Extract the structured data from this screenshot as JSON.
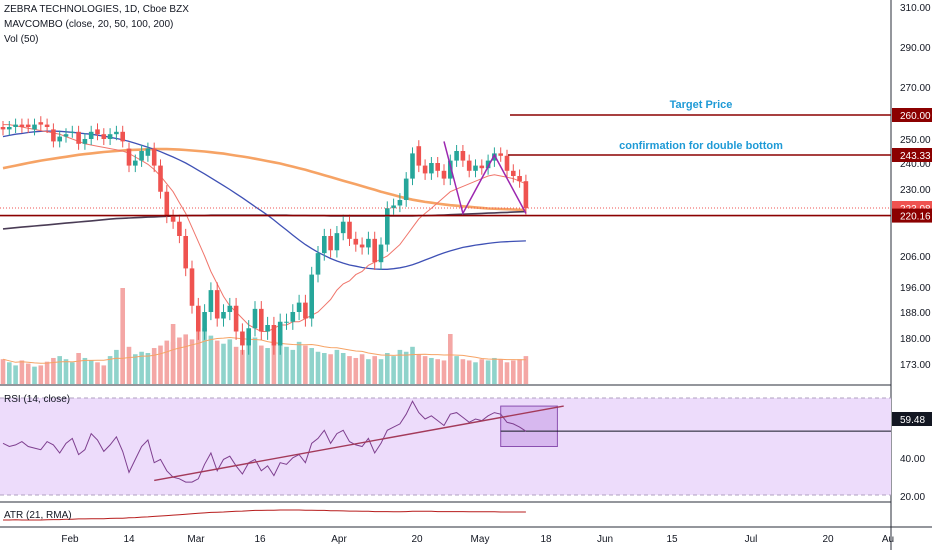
{
  "header": {
    "symbol_line": "ZEBRA TECHNOLOGIES, 1D, Cboe BZX",
    "indicator_line": "MAVCOMBO (close, 20, 50, 100, 200)",
    "volume_line": "Vol (50)"
  },
  "panes": {
    "rsi_label": "RSI (14, close)",
    "atr_label": "ATR (21, RMA)"
  },
  "annotations": {
    "target_label": "Target Price",
    "confirmation_label": "confirmation for double bottom"
  },
  "colors": {
    "up": "#26a69a",
    "down": "#ef5350",
    "ma_fast": "#f0766c",
    "ma_mid": "#3f51b5",
    "ma_slow": "#f6a365",
    "ma_long": "#4a3c55",
    "annotation_line": "#8b0000",
    "annotation_text": "#1e9ad6",
    "rsi_line": "#7e3f8f",
    "rsi_band": "#eddcfb",
    "trendline": "#a33a5a"
  },
  "chart_data": [
    {
      "type": "candlestick",
      "pane": "price",
      "title": "ZEBRA TECHNOLOGIES, 1D, Cboe BZX",
      "price_axis_ticks": [
        310,
        290,
        270,
        250,
        240,
        230,
        220,
        206,
        196,
        188,
        180,
        173
      ],
      "time_axis_ticks": [
        "Feb",
        "14",
        "Mar",
        "16",
        "Apr",
        "20",
        "May",
        "18",
        "Jun",
        "15",
        "Jul",
        "20",
        "Au"
      ],
      "price_labels": [
        {
          "value": 260.0,
          "text": "260.00",
          "kind": "level"
        },
        {
          "value": 243.33,
          "text": "243.33",
          "kind": "level"
        },
        {
          "value": 223.08,
          "text": "223.08",
          "kind": "last"
        },
        {
          "value": 220.16,
          "text": "220.16",
          "kind": "level"
        }
      ],
      "horizontal_levels": [
        {
          "value": 260.0,
          "label": "Target Price"
        },
        {
          "value": 243.33,
          "label": "confirmation for double bottom"
        },
        {
          "value": 220.16,
          "label": ""
        }
      ],
      "double_bottom_pattern": {
        "points": [
          {
            "day": 70,
            "price": 249
          },
          {
            "day": 73,
            "price": 221
          },
          {
            "day": 78,
            "price": 243.33
          },
          {
            "day": 83,
            "price": 221
          }
        ]
      },
      "closes": [
        254,
        255,
        256,
        255,
        255,
        256,
        256,
        255,
        249,
        251,
        252,
        253,
        248,
        250,
        253,
        252,
        250,
        252,
        253,
        249,
        239,
        241,
        245,
        246,
        239,
        229,
        220,
        218,
        213,
        202,
        190,
        182,
        188,
        195,
        186,
        188,
        190,
        182,
        178,
        183,
        189,
        182,
        184,
        178,
        185,
        185,
        188,
        191,
        186,
        200,
        207,
        213,
        208,
        214,
        218,
        212,
        210,
        209,
        212,
        204,
        210,
        223,
        224,
        226,
        234,
        244,
        239,
        236,
        240,
        237,
        234,
        241,
        245,
        241,
        237,
        239,
        238,
        241,
        244,
        243,
        237,
        235,
        233,
        223
      ],
      "opens": [
        255,
        254,
        255,
        256,
        256,
        254,
        257,
        256,
        254,
        249,
        251,
        253,
        253,
        248,
        250,
        254,
        252,
        250,
        252,
        253,
        246,
        239,
        241,
        243,
        246,
        239,
        229,
        220,
        218,
        213,
        202,
        190,
        182,
        188,
        195,
        186,
        188,
        190,
        182,
        178,
        183,
        189,
        182,
        184,
        178,
        185,
        185,
        188,
        191,
        186,
        200,
        207,
        213,
        208,
        214,
        218,
        212,
        210,
        209,
        212,
        204,
        210,
        223,
        224,
        226,
        234,
        247,
        239,
        236,
        240,
        237,
        234,
        241,
        245,
        241,
        237,
        239,
        238,
        241,
        244,
        243,
        237,
        235,
        233
      ],
      "ma20": [
        256,
        256,
        255.5,
        255,
        254.5,
        254,
        253.5,
        253,
        252.5,
        252,
        251,
        250,
        249,
        248,
        247.5,
        247,
        246.5,
        246,
        245.5,
        245,
        244,
        242.5,
        241,
        239.5,
        237.5,
        235,
        232,
        229,
        225,
        221,
        216,
        211,
        206,
        201,
        197,
        193,
        190,
        188,
        186,
        184,
        183,
        182,
        182,
        183,
        184,
        184,
        185,
        185,
        186,
        187,
        188,
        190,
        192,
        195,
        197,
        198,
        200,
        201,
        203,
        204,
        205,
        206,
        208,
        210,
        213,
        216,
        219,
        221,
        223,
        225,
        227,
        229,
        230,
        231,
        232,
        233,
        234,
        235,
        235.5,
        235,
        234.5,
        234,
        233,
        232
      ],
      "ma50": [
        251,
        251.5,
        252,
        252.3,
        252.7,
        253,
        253.2,
        253.3,
        253.3,
        253.2,
        253,
        252.8,
        252.5,
        252.2,
        252,
        251.6,
        251.2,
        250.7,
        250.2,
        249.7,
        249,
        248.2,
        247.4,
        246.6,
        245.7,
        244.7,
        243.6,
        242.5,
        241.3,
        240,
        238.6,
        237.2,
        235.8,
        234.3,
        232.8,
        231.3,
        229.8,
        228.3,
        226.8,
        225.2,
        223.6,
        222,
        220.3,
        218.6,
        216.8,
        215.1,
        213.3,
        211.6,
        210,
        208.6,
        207.3,
        206.2,
        205.2,
        204.4,
        203.7,
        203.1,
        202.7,
        202.3,
        202,
        201.8,
        201.7,
        201.7,
        201.9,
        202.2,
        202.6,
        203.2,
        203.9,
        204.7,
        205.5,
        206.3,
        207.1,
        207.8,
        208.4,
        209,
        209.4,
        209.8,
        210.1,
        210.4,
        210.7,
        210.9,
        211,
        211.1,
        211.2,
        211.3
      ],
      "ma100": [
        238,
        238.5,
        239,
        239.5,
        240,
        240.5,
        241,
        241.4,
        241.8,
        242.2,
        242.6,
        243,
        243.4,
        243.7,
        244,
        244.3,
        244.6,
        244.8,
        245,
        245.2,
        245.4,
        245.5,
        245.6,
        245.7,
        245.8,
        245.8,
        245.8,
        245.7,
        245.6,
        245.4,
        245.2,
        245,
        244.8,
        244.5,
        244.2,
        243.9,
        243.5,
        243.1,
        242.7,
        242.3,
        241.8,
        241.3,
        240.8,
        240.3,
        239.8,
        239.2,
        238.6,
        238,
        237.4,
        236.7,
        236,
        235.3,
        234.6,
        233.9,
        233.2,
        232.5,
        231.8,
        231.1,
        230.4,
        229.7,
        229,
        228.4,
        227.8,
        227.2,
        226.6,
        226.1,
        225.7,
        225.3,
        225,
        224.7,
        224.4,
        224.1,
        223.9,
        223.7,
        223.5,
        223.3,
        223.1,
        222.9,
        222.8,
        222.7,
        222.6,
        222.5,
        222.4,
        222.3
      ],
      "ma200": [
        215.5,
        215.7,
        215.9,
        216.1,
        216.3,
        216.5,
        216.7,
        216.9,
        217.1,
        217.3,
        217.5,
        217.7,
        217.9,
        218.1,
        218.3,
        218.5,
        218.7,
        218.9,
        219.1,
        219.2,
        219.3,
        219.4,
        219.5,
        219.6,
        219.7,
        219.8,
        219.9,
        220,
        220.1,
        220.1,
        220.2,
        220.2,
        220.2,
        220.3,
        220.3,
        220.3,
        220.3,
        220.3,
        220.3,
        220.3,
        220.3,
        220.3,
        220.3,
        220.3,
        220.3,
        220.3,
        220.2,
        220.2,
        220.2,
        220.1,
        220.1,
        220.1,
        220,
        220,
        220,
        220,
        220,
        220,
        220,
        220,
        220,
        220,
        220,
        220,
        220,
        220,
        220.1,
        220.1,
        220.2,
        220.3,
        220.4,
        220.5,
        220.6,
        220.7,
        220.8,
        220.9,
        221,
        221.1,
        221.2,
        221.3,
        221.4,
        221.5,
        221.6,
        221.7
      ]
    },
    {
      "type": "bar",
      "pane": "volume",
      "title": "Vol (50)",
      "values": [
        40,
        35,
        30,
        38,
        33,
        28,
        30,
        36,
        42,
        45,
        40,
        35,
        50,
        42,
        38,
        35,
        30,
        45,
        55,
        40,
        60,
        48,
        52,
        50,
        58,
        62,
        70,
        68,
        75,
        80,
        72,
        85,
        90,
        78,
        70,
        65,
        72,
        60,
        55,
        68,
        75,
        62,
        58,
        70,
        65,
        60,
        55,
        68,
        62,
        58,
        52,
        50,
        48,
        55,
        50,
        45,
        42,
        48,
        40,
        45,
        40,
        50,
        45,
        55,
        52,
        60,
        48,
        45,
        42,
        40,
        38,
        42,
        45,
        40,
        38,
        35,
        40,
        38,
        42,
        40,
        35,
        38,
        40,
        45
      ]
    },
    {
      "type": "line",
      "pane": "rsi",
      "title": "RSI (14, close)",
      "y_ticks": [
        59.48,
        40.0,
        20.0
      ],
      "last_value": 59.48,
      "values": [
        52,
        50,
        51,
        53,
        50,
        49,
        48,
        53,
        51,
        46,
        52,
        55,
        45,
        48,
        58,
        54,
        47,
        51,
        56,
        47,
        34,
        42,
        50,
        54,
        40,
        42,
        35,
        31,
        30,
        28,
        28,
        30,
        39,
        46,
        35,
        42,
        44,
        38,
        33,
        40,
        42,
        35,
        38,
        32,
        40,
        39,
        43,
        45,
        40,
        52,
        55,
        60,
        52,
        58,
        60,
        53,
        51,
        50,
        55,
        46,
        52,
        60,
        62,
        64,
        70,
        78,
        71,
        67,
        69,
        66,
        63,
        70,
        71,
        68,
        65,
        67,
        66,
        69,
        71,
        70,
        65,
        64,
        62,
        59.48
      ],
      "trendline": [
        {
          "day": 24,
          "value": 29
        },
        {
          "day": 89,
          "value": 75
        }
      ],
      "highlight_box": {
        "day_from": 79,
        "day_to": 88,
        "value_from": 50,
        "value_to": 75
      }
    },
    {
      "type": "line",
      "pane": "atr",
      "title": "ATR (21, RMA)",
      "values": [
        3.0,
        3.0,
        3.1,
        3.0,
        3.0,
        3.0,
        3.0,
        3.1,
        3.2,
        3.2,
        3.3,
        3.3,
        3.5,
        3.5,
        3.6,
        3.6,
        3.6,
        3.7,
        3.8,
        3.8,
        4.0,
        4.1,
        4.3,
        4.4,
        4.6,
        4.8,
        5.0,
        5.2,
        5.4,
        5.6,
        5.8,
        6.0,
        6.2,
        6.4,
        6.5,
        6.6,
        6.8,
        6.9,
        7.0,
        7.2,
        7.3,
        7.3,
        7.4,
        7.4,
        7.5,
        7.5,
        7.5,
        7.5,
        7.4,
        7.4,
        7.3,
        7.3,
        7.2,
        7.2,
        7.1,
        7.0,
        7.0,
        6.9,
        6.9,
        6.8,
        6.8,
        6.8,
        6.7,
        6.7,
        6.8,
        6.9,
        6.9,
        6.9,
        6.9,
        6.8,
        6.8,
        6.8,
        6.8,
        6.8,
        6.7,
        6.7,
        6.7,
        6.7,
        6.7,
        6.6,
        6.6,
        6.6,
        6.6,
        6.6
      ]
    }
  ]
}
